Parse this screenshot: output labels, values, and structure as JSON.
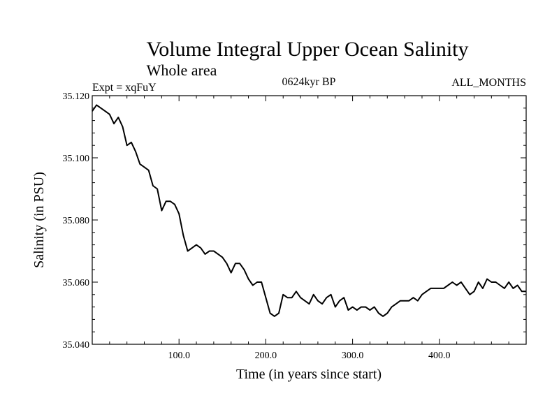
{
  "chart_data": {
    "type": "line",
    "title": "Volume Integral Upper Ocean Salinity",
    "subtitle": "Whole area",
    "left_label": "Expt = xqFuY",
    "center_label": "0624kyr BP",
    "right_label": "ALL_MONTHS",
    "xlabel": "Time (in years since start)",
    "ylabel": "Salinity (in PSU)",
    "xlim": [
      0,
      500
    ],
    "ylim": [
      35.04,
      35.12
    ],
    "xticks": [
      100,
      200,
      300,
      400
    ],
    "xtick_labels": [
      "100.0",
      "200.0",
      "300.0",
      "400.0"
    ],
    "yticks": [
      35.04,
      35.06,
      35.08,
      35.1,
      35.12
    ],
    "ytick_labels": [
      "35.040",
      "35.060",
      "35.080",
      "35.100",
      "35.120"
    ],
    "grid": false,
    "series": [
      {
        "name": "salinity",
        "x": [
          0,
          5,
          10,
          15,
          20,
          25,
          30,
          35,
          40,
          45,
          50,
          55,
          60,
          65,
          70,
          75,
          80,
          85,
          90,
          95,
          100,
          105,
          110,
          115,
          120,
          125,
          130,
          135,
          140,
          145,
          150,
          155,
          160,
          165,
          170,
          175,
          180,
          185,
          190,
          195,
          200,
          205,
          210,
          215,
          220,
          225,
          230,
          235,
          240,
          245,
          250,
          255,
          260,
          265,
          270,
          275,
          280,
          285,
          290,
          295,
          300,
          305,
          310,
          315,
          320,
          325,
          330,
          335,
          340,
          345,
          350,
          355,
          360,
          365,
          370,
          375,
          380,
          385,
          390,
          395,
          400,
          405,
          410,
          415,
          420,
          425,
          430,
          435,
          440,
          445,
          450,
          455,
          460,
          465,
          470,
          475,
          480,
          485,
          490,
          495,
          500
        ],
        "values": [
          35.115,
          35.117,
          35.116,
          35.115,
          35.114,
          35.111,
          35.113,
          35.11,
          35.104,
          35.105,
          35.102,
          35.098,
          35.097,
          35.096,
          35.091,
          35.09,
          35.083,
          35.086,
          35.086,
          35.085,
          35.082,
          35.075,
          35.07,
          35.071,
          35.072,
          35.071,
          35.069,
          35.07,
          35.07,
          35.069,
          35.068,
          35.066,
          35.063,
          35.066,
          35.066,
          35.064,
          35.061,
          35.059,
          35.06,
          35.06,
          35.055,
          35.05,
          35.049,
          35.05,
          35.056,
          35.055,
          35.055,
          35.057,
          35.055,
          35.054,
          35.053,
          35.056,
          35.054,
          35.053,
          35.055,
          35.056,
          35.052,
          35.054,
          35.055,
          35.051,
          35.052,
          35.051,
          35.052,
          35.052,
          35.051,
          35.052,
          35.05,
          35.049,
          35.05,
          35.052,
          35.053,
          35.054,
          35.054,
          35.054,
          35.055,
          35.054,
          35.056,
          35.057,
          35.058,
          35.058,
          35.058,
          35.058,
          35.059,
          35.06,
          35.059,
          35.06,
          35.058,
          35.056,
          35.057,
          35.06,
          35.058,
          35.061,
          35.06,
          35.06,
          35.059,
          35.058,
          35.06,
          35.058,
          35.059,
          35.057,
          35.057
        ]
      }
    ]
  }
}
